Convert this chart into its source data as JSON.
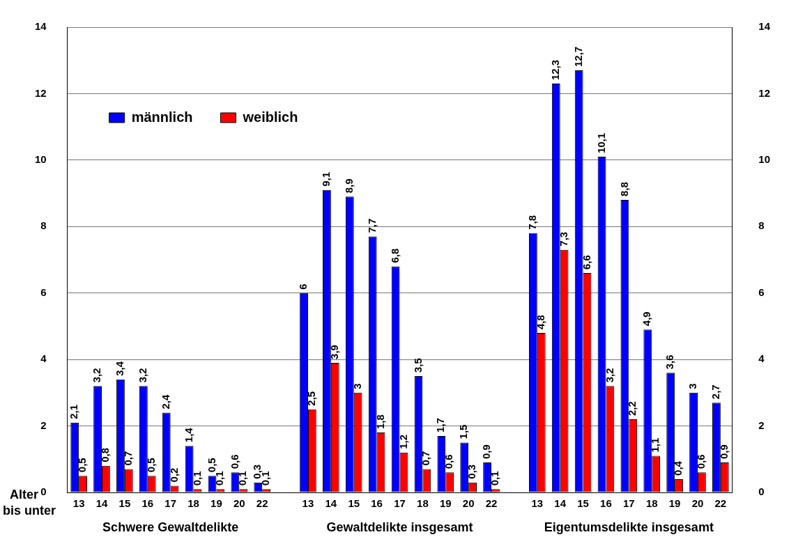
{
  "chart_data": {
    "type": "bar",
    "xlabel": "Alter bis unter",
    "categories": [
      "13",
      "14",
      "15",
      "16",
      "17",
      "18",
      "19",
      "20",
      "22",
      null,
      "13",
      "14",
      "15",
      "16",
      "17",
      "18",
      "19",
      "20",
      "22",
      null,
      "13",
      "14",
      "15",
      "16",
      "17",
      "18",
      "19",
      "20",
      "22"
    ],
    "series": [
      {
        "name": "männlich",
        "color": "#0000ff",
        "values": [
          2.1,
          3.2,
          3.4,
          3.2,
          2.4,
          1.4,
          0.5,
          0.6,
          0.3,
          null,
          6,
          9.1,
          8.9,
          7.7,
          6.8,
          3.5,
          1.7,
          1.5,
          0.9,
          null,
          7.8,
          12.3,
          12.7,
          10.1,
          8.8,
          4.9,
          3.6,
          3,
          2.7
        ],
        "value_labels": [
          "2,1",
          "3,2",
          "3,4",
          "3,2",
          "2,4",
          "1,4",
          "0,5",
          "0,6",
          "0,3",
          null,
          "6",
          "9,1",
          "8,9",
          "7,7",
          "6,8",
          "3,5",
          "1,7",
          "1,5",
          "0,9",
          null,
          "7,8",
          "12,3",
          "12,7",
          "10,1",
          "8,8",
          "4,9",
          "3,6",
          "3",
          "2,7"
        ]
      },
      {
        "name": "weiblich",
        "color": "#ff0000",
        "values": [
          0.5,
          0.8,
          0.7,
          0.5,
          0.2,
          0.1,
          0.1,
          0.1,
          0.1,
          null,
          2.5,
          3.9,
          3,
          1.8,
          1.2,
          0.7,
          0.6,
          0.3,
          0.1,
          null,
          4.8,
          7.3,
          6.6,
          3.2,
          2.2,
          1.1,
          0.4,
          0.6,
          0.9
        ],
        "value_labels": [
          "0,5",
          "0,8",
          "0,7",
          "0,5",
          "0,2",
          "0,1",
          "0,1",
          "0,1",
          "0,1",
          null,
          "2,5",
          "3,9",
          "3",
          "1,8",
          "1,2",
          "0,7",
          "0,6",
          "0,3",
          "0,1",
          null,
          "4,8",
          "7,3",
          "6,6",
          "3,2",
          "2,2",
          "1,1",
          "0,4",
          "0,6",
          "0,9"
        ]
      }
    ],
    "ylim": [
      0,
      14
    ],
    "yticks": [
      0,
      2,
      4,
      6,
      8,
      10,
      12,
      14
    ],
    "y2lim": [
      0,
      14
    ],
    "y2ticks": [
      0,
      2,
      4,
      6,
      8,
      10,
      12,
      14
    ],
    "grid": "y",
    "legend": "top left",
    "annotations": [
      "Schwere Gewaltdelikte",
      "Gewaltdelikte insgesamt",
      "Eigentumsdelikte insgesamt"
    ]
  }
}
